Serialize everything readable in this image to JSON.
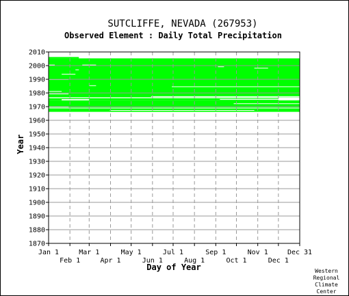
{
  "chart_data": {
    "type": "heatmap",
    "title": "SUTCLIFFE, NEVADA   (267953)",
    "subtitle": "Observed Element : Daily Total Precipitation",
    "xlabel": "Day of Year",
    "ylabel": "Year",
    "xlim": [
      1,
      366
    ],
    "ylim": [
      1870,
      2010
    ],
    "x_ticks_row1": [
      {
        "label": "Jan 1",
        "day": 1
      },
      {
        "label": "Mar 1",
        "day": 60
      },
      {
        "label": "May 1",
        "day": 121
      },
      {
        "label": "Jul 1",
        "day": 182
      },
      {
        "label": "Sep 1",
        "day": 244
      },
      {
        "label": "Nov 1",
        "day": 305
      },
      {
        "label": "Dec 31",
        "day": 366
      }
    ],
    "x_ticks_row2": [
      {
        "label": "Feb 1",
        "day": 32
      },
      {
        "label": "Apr 1",
        "day": 91
      },
      {
        "label": "Jun 1",
        "day": 152
      },
      {
        "label": "Aug 1",
        "day": 213
      },
      {
        "label": "Oct 1",
        "day": 274
      },
      {
        "label": "Dec 1",
        "day": 335
      }
    ],
    "y_ticks": [
      1870,
      1880,
      1890,
      1900,
      1910,
      1920,
      1930,
      1940,
      1950,
      1960,
      1970,
      1980,
      1990,
      2000,
      2010
    ],
    "grid": true,
    "color_observed": "#00ff00",
    "color_missing": "#ffffff",
    "observed_blocks": [
      {
        "year_from": 1966.2,
        "year_to": 1968.8,
        "day_from": 1,
        "day_to": 366
      },
      {
        "year_from": 1969.2,
        "year_to": 1974.6,
        "day_from": 1,
        "day_to": 366
      },
      {
        "year_from": 1974.6,
        "year_to": 1976.2,
        "day_from": 1,
        "day_to": 335
      },
      {
        "year_from": 1976.8,
        "year_to": 2005.3,
        "day_from": 1,
        "day_to": 366
      },
      {
        "year_from": 2005.3,
        "year_to": 2006.3,
        "day_from": 1,
        "day_to": 45
      }
    ],
    "missing_gaps": [
      {
        "year_from": 1968.8,
        "year_to": 1969.2,
        "day_from": 1,
        "day_to": 366
      },
      {
        "year_from": 1976.2,
        "year_to": 1976.8,
        "day_from": 1,
        "day_to": 366
      },
      {
        "year_from": 1967.0,
        "year_to": 1967.5,
        "day_from": 90,
        "day_to": 300
      },
      {
        "year_from": 1969.5,
        "year_to": 1970.0,
        "day_from": 1,
        "day_to": 30
      },
      {
        "year_from": 1972.0,
        "year_to": 1972.4,
        "day_from": 270,
        "day_to": 366
      },
      {
        "year_from": 1974.6,
        "year_to": 1975.5,
        "day_from": 20,
        "day_to": 60
      },
      {
        "year_from": 1975.0,
        "year_to": 1975.6,
        "day_from": 250,
        "day_to": 366
      },
      {
        "year_from": 1977.0,
        "year_to": 1977.6,
        "day_from": 150,
        "day_to": 366
      },
      {
        "year_from": 1979.2,
        "year_to": 1979.6,
        "day_from": 1,
        "day_to": 30
      },
      {
        "year_from": 1981.0,
        "year_to": 1981.4,
        "day_from": 1,
        "day_to": 20
      },
      {
        "year_from": 1984.3,
        "year_to": 1984.8,
        "day_from": 180,
        "day_to": 366
      },
      {
        "year_from": 1985.2,
        "year_to": 1985.6,
        "day_from": 60,
        "day_to": 70
      },
      {
        "year_from": 1989.6,
        "year_to": 1990.1,
        "day_from": 1,
        "day_to": 30
      },
      {
        "year_from": 1993.6,
        "year_to": 1994.0,
        "day_from": 20,
        "day_to": 40
      },
      {
        "year_from": 1996.8,
        "year_to": 1997.2,
        "day_from": 40,
        "day_to": 45
      },
      {
        "year_from": 1998.0,
        "year_to": 1998.4,
        "day_from": 300,
        "day_to": 320
      },
      {
        "year_from": 2000.3,
        "year_to": 2000.7,
        "day_from": 1,
        "day_to": 10
      },
      {
        "year_from": 2000.3,
        "year_to": 2000.7,
        "day_from": 50,
        "day_to": 70
      },
      {
        "year_from": 1999.0,
        "year_to": 1999.4,
        "day_from": 247,
        "day_to": 256
      }
    ],
    "credit": [
      "Western",
      "Regional",
      "Climate",
      "Center"
    ]
  }
}
